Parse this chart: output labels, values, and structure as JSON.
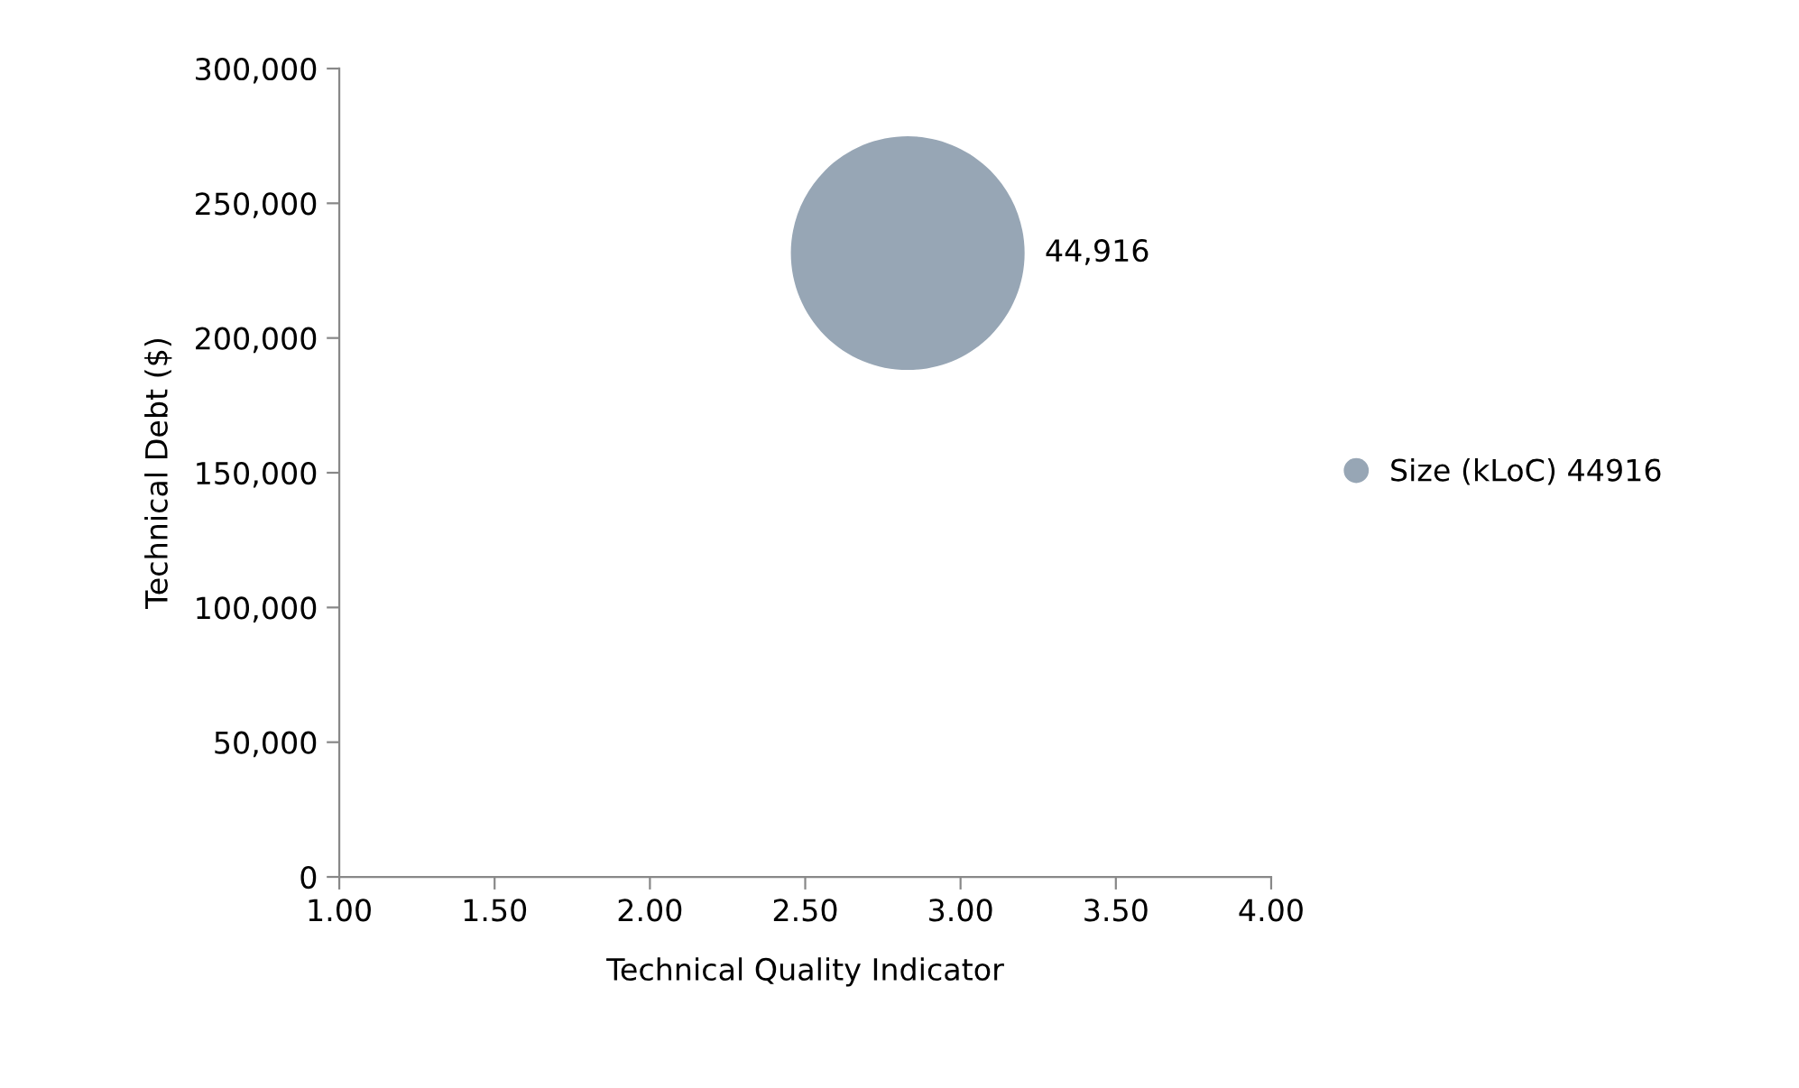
{
  "chart_data": {
    "type": "bubble",
    "xlabel": "Technical Quality Indicator",
    "ylabel": "Technical Debt ($)",
    "x": [
      2.83
    ],
    "series": [
      {
        "name": "Size (kLoC) 44916",
        "color": "#97a6b5",
        "values": [
          231500
        ],
        "sizes": [
          1
        ]
      }
    ],
    "annotations": [
      "44,916"
    ],
    "xlim": [
      1.0,
      4.0
    ],
    "xticks": [
      {
        "value": 1.0,
        "label": "1.00"
      },
      {
        "value": 1.5,
        "label": "1.50"
      },
      {
        "value": 2.0,
        "label": "2.00"
      },
      {
        "value": 2.5,
        "label": "2.50"
      },
      {
        "value": 3.0,
        "label": "3.00"
      },
      {
        "value": 3.5,
        "label": "3.50"
      },
      {
        "value": 4.0,
        "label": "4.00"
      }
    ],
    "ylim": [
      0,
      300000
    ],
    "yticks": [
      {
        "value": 0,
        "label": "0"
      },
      {
        "value": 50000,
        "label": "50,000"
      },
      {
        "value": 100000,
        "label": "100,000"
      },
      {
        "value": 150000,
        "label": "150,000"
      },
      {
        "value": 200000,
        "label": "200,000"
      },
      {
        "value": 250000,
        "label": "250,000"
      },
      {
        "value": 300000,
        "label": "300,000"
      }
    ],
    "grid": false,
    "legend": "right"
  }
}
